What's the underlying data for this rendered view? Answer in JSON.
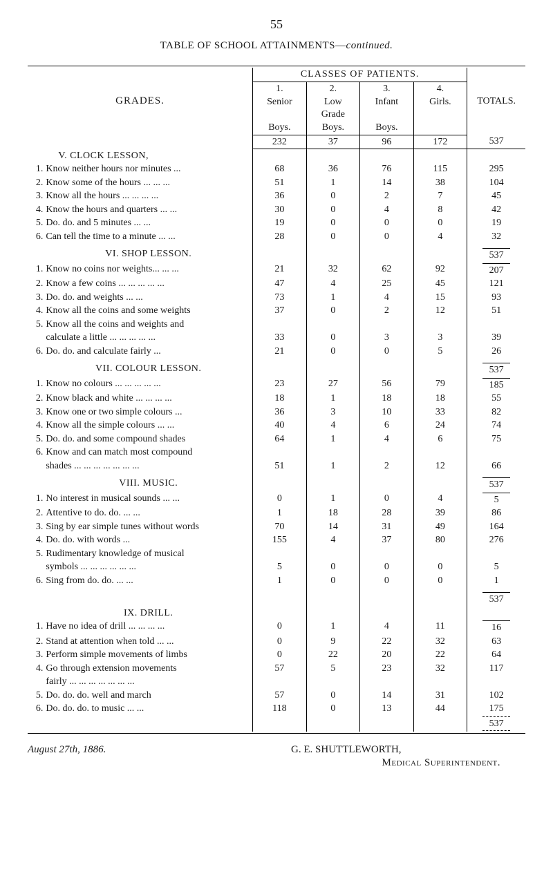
{
  "page_number": "55",
  "title_main": "TABLE OF SCHOOL ATTAINMENTS—",
  "title_cont": "continued.",
  "header": {
    "grades": "GRADES.",
    "classes_of_patients": "CLASSES OF PATIENTS.",
    "c1_num": "1.",
    "c1_a": "Senior",
    "c1_b": "Boys.",
    "c2_num": "2.",
    "c2_a": "Low",
    "c2_b": "Grade",
    "c2_c": "Boys.",
    "c3_num": "3.",
    "c3_a": "Infant",
    "c3_b": "Boys.",
    "c4_num": "4.",
    "c4_a": "Girls.",
    "totals": "TOTALS."
  },
  "sections": {
    "V": {
      "title": "V. CLOCK LESSON,",
      "group_row": [
        "232",
        "37",
        "96",
        "172",
        "537"
      ]
    },
    "VI": {
      "title": "VI. SHOP LESSON.",
      "group_total": "537"
    },
    "VII": {
      "title": "VII. COLOUR LESSON.",
      "group_total": "537"
    },
    "VIII": {
      "title": "VIII. MUSIC.",
      "group_total": "537"
    },
    "IX": {
      "title": "IX. DRILL.",
      "group_total": "537",
      "end_total": "537"
    }
  },
  "rows": {
    "V": [
      {
        "n": "1.",
        "label": "Know neither hours nor minutes  ...",
        "v": [
          "68",
          "36",
          "76",
          "115",
          "295"
        ]
      },
      {
        "n": "2.",
        "label": "Know some of the hours  ...  ...  ...",
        "v": [
          "51",
          "1",
          "14",
          "38",
          "104"
        ]
      },
      {
        "n": "3.",
        "label": "Know all the hours  ...  ...  ...  ...",
        "v": [
          "36",
          "0",
          "2",
          "7",
          "45"
        ]
      },
      {
        "n": "4.",
        "label": "Know the hours and quarters  ...  ...",
        "v": [
          "30",
          "0",
          "4",
          "8",
          "42"
        ]
      },
      {
        "n": "5.",
        "label": "Do.   do.   and 5 minutes ...  ...",
        "v": [
          "19",
          "0",
          "0",
          "0",
          "19"
        ]
      },
      {
        "n": "6.",
        "label": "Can tell the time to a minute  ...  ...",
        "v": [
          "28",
          "0",
          "0",
          "4",
          "32"
        ]
      }
    ],
    "VI": [
      {
        "n": "1.",
        "label": "Know no coins nor weights...  ...  ...",
        "v": [
          "21",
          "32",
          "62",
          "92",
          "207"
        ]
      },
      {
        "n": "2.",
        "label": "Know a few coins ...  ...  ...  ...  ...",
        "v": [
          "47",
          "4",
          "25",
          "45",
          "121"
        ]
      },
      {
        "n": "3.",
        "label": "Do.   do.   and weights  ...  ...",
        "v": [
          "73",
          "1",
          "4",
          "15",
          "93"
        ]
      },
      {
        "n": "4.",
        "label": "Know all the coins and some weights",
        "v": [
          "37",
          "0",
          "2",
          "12",
          "51"
        ]
      },
      {
        "n": "5.",
        "label": "Know all the coins and weights and",
        "v": [
          "",
          "",
          "",
          "",
          ""
        ]
      },
      {
        "n": "",
        "label": "  calculate a little ...  ...  ...  ...  ...",
        "v": [
          "33",
          "0",
          "3",
          "3",
          "39"
        ]
      },
      {
        "n": "6.",
        "label": "Do.   do.  and calculate fairly  ...",
        "v": [
          "21",
          "0",
          "0",
          "5",
          "26"
        ]
      }
    ],
    "VII": [
      {
        "n": "1.",
        "label": "Know no colours  ...  ...  ...  ...  ...",
        "v": [
          "23",
          "27",
          "56",
          "79",
          "185"
        ]
      },
      {
        "n": "2.",
        "label": "Know black and white ...  ...  ...  ...",
        "v": [
          "18",
          "1",
          "18",
          "18",
          "55"
        ]
      },
      {
        "n": "3.",
        "label": "Know one or two simple colours  ...",
        "v": [
          "36",
          "3",
          "10",
          "33",
          "82"
        ]
      },
      {
        "n": "4.",
        "label": "Know all the simple colours  ...  ...",
        "v": [
          "40",
          "4",
          "6",
          "24",
          "74"
        ]
      },
      {
        "n": "5.",
        "label": "Do.  do. and some compound shades",
        "v": [
          "64",
          "1",
          "4",
          "6",
          "75"
        ]
      },
      {
        "n": "6.",
        "label": "Know and can match most compound",
        "v": [
          "",
          "",
          "",
          "",
          ""
        ]
      },
      {
        "n": "",
        "label": "  shades  ...  ...  ...  ...  ...  ...  ...",
        "v": [
          "51",
          "1",
          "2",
          "12",
          "66"
        ]
      }
    ],
    "VIII": [
      {
        "n": "1.",
        "label": "No interest in musical sounds  ...  ...",
        "v": [
          "0",
          "1",
          "0",
          "4",
          "5"
        ]
      },
      {
        "n": "2.",
        "label": "Attentive to   do.   do.   ...  ...",
        "v": [
          "1",
          "18",
          "28",
          "39",
          "86"
        ]
      },
      {
        "n": "3.",
        "label": "Sing by ear simple tunes without words",
        "v": [
          "70",
          "14",
          "31",
          "49",
          "164"
        ]
      },
      {
        "n": "4.",
        "label": "  Do.   do.   with words ...",
        "v": [
          "155",
          "4",
          "37",
          "80",
          "276"
        ]
      },
      {
        "n": "5.",
        "label": "Rudimentary knowledge of musical",
        "v": [
          "",
          "",
          "",
          "",
          ""
        ]
      },
      {
        "n": "",
        "label": "  symbols ...  ...  ...  ...  ...  ...",
        "v": [
          "5",
          "0",
          "0",
          "0",
          "5"
        ]
      },
      {
        "n": "6.",
        "label": "Sing from   do.   do.   ...  ...",
        "v": [
          "1",
          "0",
          "0",
          "0",
          "1"
        ]
      }
    ],
    "IX": [
      {
        "n": "1.",
        "label": "Have no idea of drill  ...  ...  ...  ...",
        "v": [
          "0",
          "1",
          "4",
          "11",
          "16"
        ]
      },
      {
        "n": "2.",
        "label": "Stand at attention when told  ...  ...",
        "v": [
          "0",
          "9",
          "22",
          "32",
          "63"
        ]
      },
      {
        "n": "3.",
        "label": "Perform simple movements of limbs",
        "v": [
          "0",
          "22",
          "20",
          "22",
          "64"
        ]
      },
      {
        "n": "4.",
        "label": "Go through extension movements",
        "v": [
          "57",
          "5",
          "23",
          "32",
          "117"
        ]
      },
      {
        "n": "",
        "label": "  fairly  ...  ...  ...  ...  ...  ...  ...",
        "v": [
          "",
          "",
          "",
          "",
          ""
        ]
      },
      {
        "n": "5.",
        "label": "Do.   do.   do.   well and march",
        "v": [
          "57",
          "0",
          "14",
          "31",
          "102"
        ]
      },
      {
        "n": "6.",
        "label": "Do.   do.   do.   to music ...  ...",
        "v": [
          "118",
          "0",
          "13",
          "44",
          "175"
        ]
      }
    ]
  },
  "signature": {
    "name": "G. E. SHUTTLEWORTH,",
    "date": "August 27th, 1886.",
    "role": "Medical Superintendent."
  }
}
